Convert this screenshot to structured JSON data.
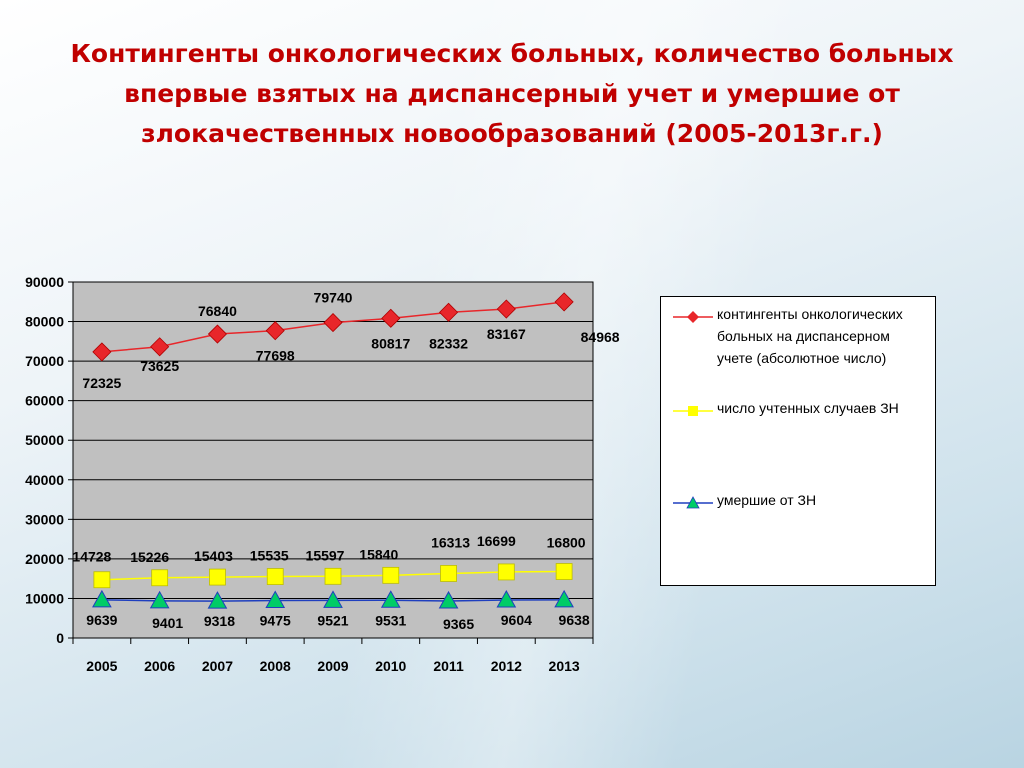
{
  "slide": {
    "title": "Контингенты онкологических больных, количество больных впервые взятых на диспансерный учет и умершие от злокачественных новообразований (2005-2013г.г.)"
  },
  "chart_data": {
    "type": "line",
    "title": "",
    "xlabel": "",
    "ylabel": "",
    "categories": [
      "2005",
      "2006",
      "2007",
      "2008",
      "2009",
      "2010",
      "2011",
      "2012",
      "2013"
    ],
    "ylim": [
      0,
      90000
    ],
    "yticks": [
      0,
      10000,
      20000,
      30000,
      40000,
      50000,
      60000,
      70000,
      80000,
      90000
    ],
    "grid": true,
    "legend_position": "right",
    "series": [
      {
        "name": "контингенты онкологических больных на диспансерном учете (абсолютное число)",
        "values": [
          72325,
          73625,
          76840,
          77698,
          79740,
          80817,
          82332,
          83167,
          84968
        ],
        "color": "#e8262a",
        "marker": "diamond"
      },
      {
        "name": "число учтенных случаев ЗН",
        "values": [
          14728,
          15226,
          15403,
          15535,
          15597,
          15840,
          16313,
          16699,
          16800
        ],
        "color": "#ffff00",
        "marker": "square"
      },
      {
        "name": "умершие от ЗН",
        "values": [
          9639,
          9401,
          9318,
          9475,
          9521,
          9531,
          9365,
          9604,
          9638
        ],
        "color": "#00cc66",
        "line_color": "#1f3fbf",
        "marker": "triangle"
      }
    ]
  }
}
